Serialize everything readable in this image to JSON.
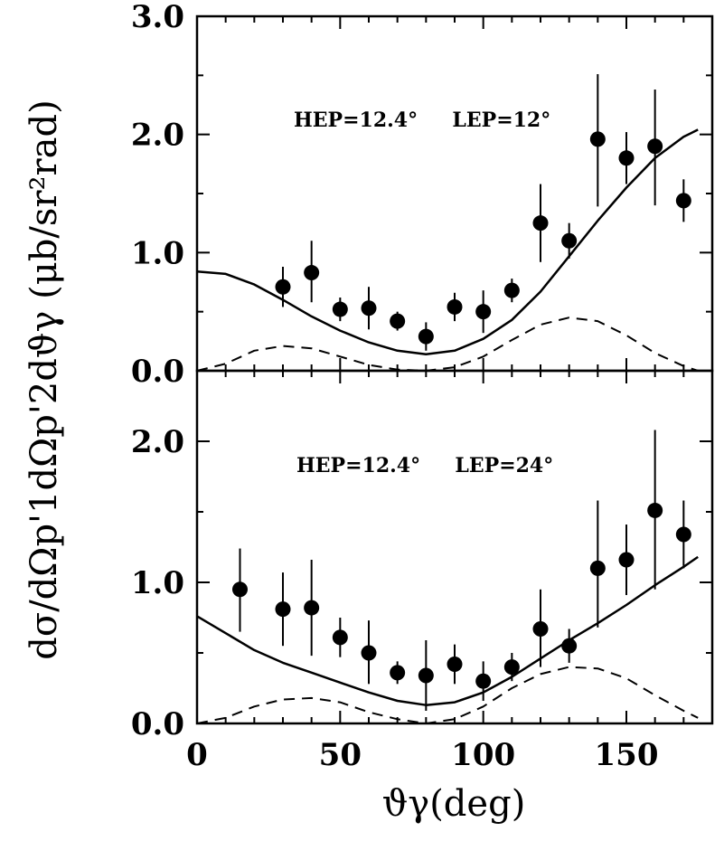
{
  "chart_data": {
    "type": "scatter",
    "xlabel": "ϑγ(deg)",
    "ylabel": "dσ/dΩp'1dΩp'2dϑγ (μb/sr²rad)",
    "xlim": [
      0,
      180
    ],
    "x_ticks": [
      "0",
      "50",
      "100",
      "150"
    ],
    "panels": [
      {
        "annotation": "HEP=12.4°     LEP=12°",
        "ylim": [
          0,
          3.0
        ],
        "y_ticks": [
          "0.0",
          "1.0",
          "2.0",
          "3.0"
        ],
        "series": [
          {
            "style": "points-with-errorbars",
            "x": [
              30,
              40,
              50,
              60,
              70,
              80,
              90,
              100,
              110,
              120,
              130,
              140,
              150,
              160,
              170
            ],
            "y": [
              0.71,
              0.83,
              0.52,
              0.53,
              0.42,
              0.29,
              0.54,
              0.5,
              0.68,
              1.25,
              1.1,
              1.96,
              1.8,
              1.9,
              1.44
            ],
            "err_low": [
              0.17,
              0.25,
              0.1,
              0.18,
              0.08,
              0.12,
              0.12,
              0.18,
              0.1,
              0.33,
              0.15,
              0.57,
              0.22,
              0.5,
              0.18
            ],
            "err_high": [
              0.17,
              0.27,
              0.1,
              0.18,
              0.08,
              0.12,
              0.12,
              0.18,
              0.1,
              0.33,
              0.15,
              0.55,
              0.22,
              0.48,
              0.18
            ]
          },
          {
            "style": "solid",
            "x": [
              0,
              10,
              20,
              30,
              40,
              50,
              60,
              70,
              80,
              90,
              100,
              110,
              120,
              130,
              140,
              150,
              160,
              170,
              175
            ],
            "y": [
              0.84,
              0.82,
              0.73,
              0.6,
              0.46,
              0.34,
              0.24,
              0.17,
              0.14,
              0.17,
              0.27,
              0.43,
              0.67,
              0.97,
              1.27,
              1.55,
              1.8,
              1.98,
              2.04
            ]
          },
          {
            "style": "dashed",
            "x": [
              0,
              10,
              20,
              30,
              40,
              50,
              60,
              70,
              80,
              90,
              100,
              110,
              120,
              130,
              140,
              150,
              160,
              170,
              175
            ],
            "y": [
              0.0,
              0.06,
              0.17,
              0.21,
              0.19,
              0.12,
              0.05,
              0.01,
              0.0,
              0.03,
              0.12,
              0.26,
              0.39,
              0.45,
              0.42,
              0.3,
              0.15,
              0.04,
              0.0
            ]
          }
        ]
      },
      {
        "annotation": "HEP=12.4°     LEP=24°",
        "ylim": [
          0,
          2.5
        ],
        "y_ticks": [
          "0.0",
          "1.0",
          "2.0"
        ],
        "series": [
          {
            "style": "points-with-errorbars",
            "x": [
              15,
              30,
              40,
              50,
              60,
              70,
              80,
              90,
              100,
              110,
              120,
              130,
              140,
              150,
              160,
              170
            ],
            "y": [
              0.95,
              0.81,
              0.82,
              0.61,
              0.5,
              0.36,
              0.34,
              0.42,
              0.3,
              0.4,
              0.67,
              0.55,
              1.1,
              1.16,
              1.51,
              1.34
            ],
            "err_low": [
              0.3,
              0.26,
              0.34,
              0.14,
              0.22,
              0.08,
              0.25,
              0.14,
              0.14,
              0.1,
              0.27,
              0.12,
              0.42,
              0.25,
              0.56,
              0.24
            ],
            "err_high": [
              0.29,
              0.26,
              0.34,
              0.14,
              0.23,
              0.08,
              0.25,
              0.14,
              0.14,
              0.1,
              0.28,
              0.12,
              0.48,
              0.25,
              0.57,
              0.24
            ]
          },
          {
            "style": "solid",
            "x": [
              0,
              10,
              20,
              30,
              40,
              50,
              60,
              70,
              80,
              90,
              100,
              110,
              120,
              130,
              140,
              150,
              160,
              170,
              175
            ],
            "y": [
              0.76,
              0.64,
              0.52,
              0.43,
              0.36,
              0.29,
              0.22,
              0.16,
              0.13,
              0.15,
              0.22,
              0.33,
              0.46,
              0.59,
              0.71,
              0.84,
              0.98,
              1.11,
              1.18
            ]
          },
          {
            "style": "dashed",
            "x": [
              0,
              10,
              20,
              30,
              40,
              50,
              60,
              70,
              80,
              90,
              100,
              110,
              120,
              130,
              140,
              150,
              160,
              170,
              175
            ],
            "y": [
              0.0,
              0.04,
              0.12,
              0.17,
              0.18,
              0.15,
              0.08,
              0.03,
              0.0,
              0.03,
              0.12,
              0.25,
              0.35,
              0.4,
              0.39,
              0.32,
              0.2,
              0.09,
              0.04
            ]
          }
        ]
      }
    ]
  }
}
